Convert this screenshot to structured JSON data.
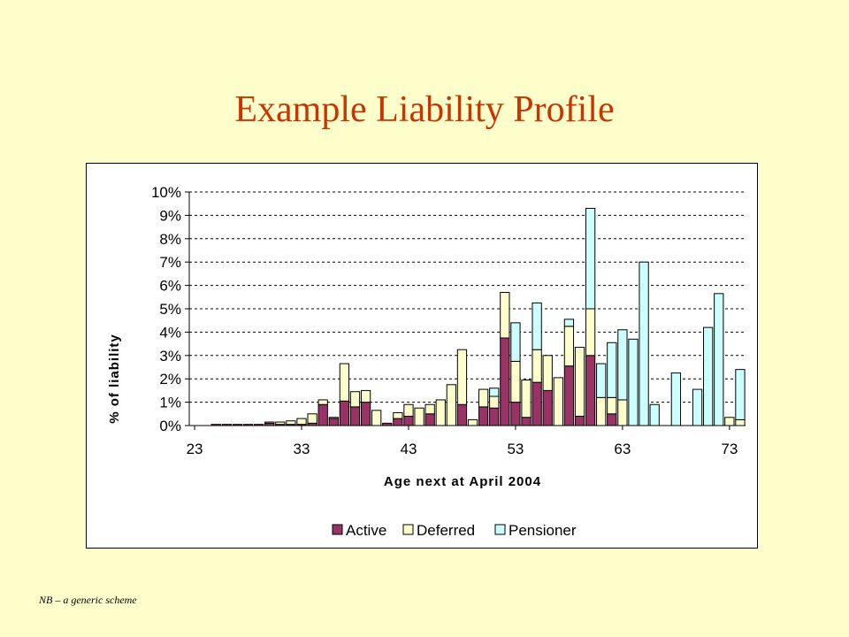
{
  "slide": {
    "title": "Example Liability Profile",
    "footnote": "NB – a generic scheme"
  },
  "chart_data": {
    "type": "bar",
    "stacked": true,
    "xlabel": "Age next at April 2004",
    "ylabel": "% of liability",
    "ylim": [
      0,
      10
    ],
    "y_ticks": [
      "0%",
      "1%",
      "2%",
      "3%",
      "4%",
      "5%",
      "6%",
      "7%",
      "8%",
      "9%",
      "10%"
    ],
    "x_tick_labels": [
      "23",
      "33",
      "43",
      "53",
      "63",
      "73"
    ],
    "grid": "horizontal dashed",
    "legend_position": "bottom",
    "categories": [
      23,
      24,
      25,
      26,
      27,
      28,
      29,
      30,
      31,
      32,
      33,
      34,
      35,
      36,
      37,
      38,
      39,
      40,
      41,
      42,
      43,
      44,
      45,
      46,
      47,
      48,
      49,
      50,
      51,
      52,
      53,
      54,
      55,
      56,
      57,
      58,
      59,
      60,
      61,
      62,
      63,
      64,
      65,
      66,
      67,
      68,
      69,
      70,
      71,
      72,
      73,
      74
    ],
    "series": [
      {
        "name": "Active",
        "color": "#993366",
        "values": [
          0,
          0,
          0.05,
          0.05,
          0.05,
          0.05,
          0.05,
          0.1,
          0.05,
          0.05,
          0.05,
          0.1,
          0.9,
          0.3,
          1.05,
          0.8,
          1.0,
          0,
          0.1,
          0.3,
          0.4,
          0,
          0.5,
          0,
          0,
          0.9,
          0,
          0.8,
          0.75,
          3.75,
          1.0,
          0.35,
          1.85,
          1.5,
          0,
          2.55,
          0.4,
          3.0,
          0,
          0.5,
          0,
          0,
          0,
          0,
          0,
          0,
          0,
          0,
          0,
          0,
          0,
          0
        ]
      },
      {
        "name": "Deferred",
        "color": "#ffffcc",
        "values": [
          0,
          0,
          0,
          0,
          0,
          0,
          0,
          0.05,
          0.1,
          0.15,
          0.25,
          0.4,
          0.2,
          0.05,
          1.6,
          0.65,
          0.5,
          0.65,
          0,
          0.25,
          0.5,
          0.75,
          0.4,
          1.1,
          1.75,
          2.35,
          0.25,
          0.75,
          0.5,
          1.95,
          1.75,
          1.6,
          1.4,
          1.5,
          2.05,
          1.7,
          2.95,
          2.0,
          1.2,
          0.7,
          1.1,
          0,
          0,
          0,
          0,
          0,
          0,
          0,
          0,
          0,
          0.35,
          0.25
        ]
      },
      {
        "name": "Pensioner",
        "color": "#ccffff",
        "values": [
          0,
          0,
          0,
          0,
          0,
          0,
          0,
          0,
          0,
          0,
          0,
          0,
          0,
          0,
          0,
          0,
          0,
          0,
          0,
          0,
          0,
          0,
          0,
          0,
          0,
          0,
          0,
          0,
          0.35,
          0,
          1.65,
          0,
          2.0,
          0,
          0,
          0.3,
          0,
          4.3,
          1.45,
          2.35,
          3.0,
          3.7,
          7.0,
          0.9,
          0,
          2.25,
          0,
          1.55,
          4.2,
          5.65,
          0,
          2.15
        ]
      }
    ]
  }
}
